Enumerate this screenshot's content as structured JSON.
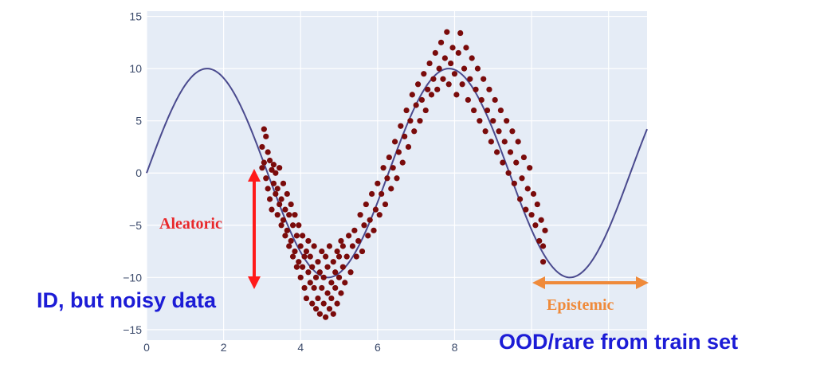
{
  "chart_data": {
    "type": "scatter",
    "xlim": [
      0,
      13
    ],
    "ylim": [
      -16,
      15.5
    ],
    "x_ticks": [
      0,
      2,
      4,
      6,
      8,
      10,
      12
    ],
    "y_ticks": [
      15,
      10,
      5,
      0,
      -5,
      -10,
      -15
    ],
    "x_tick_labels": [
      "0",
      "2",
      "4",
      "6",
      "8",
      "",
      ""
    ],
    "y_tick_labels": [
      "15",
      "10",
      "5",
      "0",
      "−5",
      "−10",
      "−15"
    ],
    "grid": true,
    "series": [
      {
        "kind": "line",
        "function": "10*sin(x)",
        "x_range": [
          0,
          13
        ],
        "color": "#4a4a8e"
      },
      {
        "kind": "scatter",
        "color": "#7a0b0b",
        "points": [
          [
            3.0,
            2.5
          ],
          [
            3.0,
            0.5
          ],
          [
            3.05,
            4.2
          ],
          [
            3.05,
            1.0
          ],
          [
            3.1,
            3.5
          ],
          [
            3.1,
            -0.5
          ],
          [
            3.15,
            2.0
          ],
          [
            3.15,
            -1.5
          ],
          [
            3.2,
            1.2
          ],
          [
            3.2,
            -2.5
          ],
          [
            3.25,
            0.3
          ],
          [
            3.25,
            -3.5
          ],
          [
            3.3,
            0.8
          ],
          [
            3.3,
            -1.0
          ],
          [
            3.35,
            -2.0
          ],
          [
            3.35,
            0.0
          ],
          [
            3.4,
            -4.0
          ],
          [
            3.4,
            -1.5
          ],
          [
            3.45,
            -3.0
          ],
          [
            3.45,
            0.5
          ],
          [
            3.5,
            -2.5
          ],
          [
            3.5,
            -5.0
          ],
          [
            3.55,
            -1.0
          ],
          [
            3.55,
            -4.5
          ],
          [
            3.6,
            -3.5
          ],
          [
            3.6,
            -6.0
          ],
          [
            3.65,
            -2.0
          ],
          [
            3.65,
            -5.5
          ],
          [
            3.7,
            -7.0
          ],
          [
            3.7,
            -4.0
          ],
          [
            3.75,
            -3.0
          ],
          [
            3.75,
            -6.5
          ],
          [
            3.8,
            -8.0
          ],
          [
            3.8,
            -5.0
          ],
          [
            3.85,
            -4.0
          ],
          [
            3.85,
            -7.5
          ],
          [
            3.9,
            -9.0
          ],
          [
            3.9,
            -6.0
          ],
          [
            3.95,
            -5.0
          ],
          [
            3.95,
            -8.5
          ],
          [
            4.0,
            -7.0
          ],
          [
            4.0,
            -10.0
          ],
          [
            4.05,
            -6.0
          ],
          [
            4.05,
            -9.0
          ],
          [
            4.1,
            -8.0
          ],
          [
            4.1,
            -11.0
          ],
          [
            4.15,
            -7.5
          ],
          [
            4.15,
            -12.0
          ],
          [
            4.2,
            -9.5
          ],
          [
            4.2,
            -6.5
          ],
          [
            4.25,
            -10.5
          ],
          [
            4.25,
            -8.0
          ],
          [
            4.3,
            -12.5
          ],
          [
            4.3,
            -9.0
          ],
          [
            4.35,
            -7.0
          ],
          [
            4.35,
            -11.0
          ],
          [
            4.4,
            -13.0
          ],
          [
            4.4,
            -10.0
          ],
          [
            4.45,
            -8.5
          ],
          [
            4.45,
            -12.0
          ],
          [
            4.5,
            -13.5
          ],
          [
            4.5,
            -9.5
          ],
          [
            4.55,
            -11.0
          ],
          [
            4.55,
            -7.5
          ],
          [
            4.6,
            -12.5
          ],
          [
            4.6,
            -10.0
          ],
          [
            4.65,
            -13.8
          ],
          [
            4.65,
            -8.0
          ],
          [
            4.7,
            -11.5
          ],
          [
            4.7,
            -9.0
          ],
          [
            4.75,
            -13.0
          ],
          [
            4.75,
            -7.0
          ],
          [
            4.8,
            -10.5
          ],
          [
            4.8,
            -12.0
          ],
          [
            4.85,
            -8.5
          ],
          [
            4.85,
            -13.5
          ],
          [
            4.9,
            -9.5
          ],
          [
            4.9,
            -11.0
          ],
          [
            4.95,
            -7.5
          ],
          [
            4.95,
            -12.5
          ],
          [
            5.0,
            -10.0
          ],
          [
            5.0,
            -8.0
          ],
          [
            5.05,
            -11.5
          ],
          [
            5.05,
            -6.5
          ],
          [
            5.1,
            -9.0
          ],
          [
            5.1,
            -7.0
          ],
          [
            5.15,
            -10.5
          ],
          [
            5.2,
            -8.0
          ],
          [
            5.25,
            -6.0
          ],
          [
            5.3,
            -9.5
          ],
          [
            5.35,
            -7.0
          ],
          [
            5.4,
            -5.5
          ],
          [
            5.45,
            -8.0
          ],
          [
            5.5,
            -6.5
          ],
          [
            5.55,
            -4.0
          ],
          [
            5.6,
            -7.5
          ],
          [
            5.65,
            -5.0
          ],
          [
            5.7,
            -3.0
          ],
          [
            5.75,
            -6.0
          ],
          [
            5.8,
            -4.5
          ],
          [
            5.85,
            -2.0
          ],
          [
            5.9,
            -5.5
          ],
          [
            5.95,
            -3.5
          ],
          [
            6.0,
            -1.0
          ],
          [
            6.05,
            -4.0
          ],
          [
            6.1,
            -2.0
          ],
          [
            6.15,
            0.5
          ],
          [
            6.2,
            -3.0
          ],
          [
            6.25,
            -0.5
          ],
          [
            6.3,
            1.5
          ],
          [
            6.35,
            -1.5
          ],
          [
            6.4,
            0.5
          ],
          [
            6.45,
            3.0
          ],
          [
            6.5,
            -0.5
          ],
          [
            6.55,
            2.0
          ],
          [
            6.6,
            4.5
          ],
          [
            6.65,
            1.0
          ],
          [
            6.7,
            3.5
          ],
          [
            6.75,
            6.0
          ],
          [
            6.8,
            2.5
          ],
          [
            6.85,
            5.0
          ],
          [
            6.9,
            7.5
          ],
          [
            6.95,
            4.0
          ],
          [
            7.0,
            6.5
          ],
          [
            7.05,
            8.5
          ],
          [
            7.1,
            5.0
          ],
          [
            7.15,
            7.0
          ],
          [
            7.2,
            9.5
          ],
          [
            7.25,
            6.0
          ],
          [
            7.3,
            8.0
          ],
          [
            7.35,
            10.5
          ],
          [
            7.4,
            7.5
          ],
          [
            7.45,
            9.0
          ],
          [
            7.5,
            11.5
          ],
          [
            7.55,
            8.0
          ],
          [
            7.6,
            10.0
          ],
          [
            7.65,
            12.5
          ],
          [
            7.7,
            9.0
          ],
          [
            7.75,
            11.0
          ],
          [
            7.8,
            13.5
          ],
          [
            7.85,
            8.5
          ],
          [
            7.9,
            10.5
          ],
          [
            7.95,
            12.0
          ],
          [
            8.0,
            9.5
          ],
          [
            8.05,
            7.5
          ],
          [
            8.1,
            11.5
          ],
          [
            8.15,
            13.4
          ],
          [
            8.2,
            8.5
          ],
          [
            8.25,
            10.0
          ],
          [
            8.3,
            12.0
          ],
          [
            8.35,
            7.0
          ],
          [
            8.4,
            9.0
          ],
          [
            8.45,
            11.0
          ],
          [
            8.5,
            6.0
          ],
          [
            8.55,
            8.0
          ],
          [
            8.6,
            10.0
          ],
          [
            8.65,
            5.0
          ],
          [
            8.7,
            7.0
          ],
          [
            8.75,
            9.0
          ],
          [
            8.8,
            4.0
          ],
          [
            8.85,
            6.0
          ],
          [
            8.9,
            8.0
          ],
          [
            8.95,
            3.0
          ],
          [
            9.0,
            5.0
          ],
          [
            9.05,
            7.0
          ],
          [
            9.1,
            2.0
          ],
          [
            9.15,
            4.0
          ],
          [
            9.2,
            6.0
          ],
          [
            9.25,
            1.0
          ],
          [
            9.3,
            3.0
          ],
          [
            9.35,
            5.0
          ],
          [
            9.4,
            0.0
          ],
          [
            9.45,
            2.0
          ],
          [
            9.5,
            4.0
          ],
          [
            9.55,
            -1.0
          ],
          [
            9.6,
            1.0
          ],
          [
            9.65,
            3.0
          ],
          [
            9.7,
            -2.5
          ],
          [
            9.75,
            -0.5
          ],
          [
            9.8,
            1.5
          ],
          [
            9.85,
            -3.5
          ],
          [
            9.9,
            -1.5
          ],
          [
            9.95,
            0.5
          ],
          [
            10.0,
            -4.0
          ],
          [
            10.05,
            -2.0
          ],
          [
            10.1,
            -5.0
          ],
          [
            10.15,
            -3.0
          ],
          [
            10.2,
            -6.5
          ],
          [
            10.25,
            -4.5
          ],
          [
            10.3,
            -7.0
          ],
          [
            10.3,
            -8.5
          ],
          [
            10.35,
            -5.5
          ]
        ]
      }
    ],
    "annotations": [
      {
        "text": "Aleatoric",
        "color": "#e8282b"
      },
      {
        "text": "Epistemic",
        "color": "#ef8a3a"
      }
    ]
  },
  "notes": {
    "aleatoric": "Aleatoric",
    "epistemic": "Epistemic",
    "id_noisy": "ID, but noisy data",
    "ood": "OOD/rare from train set"
  }
}
